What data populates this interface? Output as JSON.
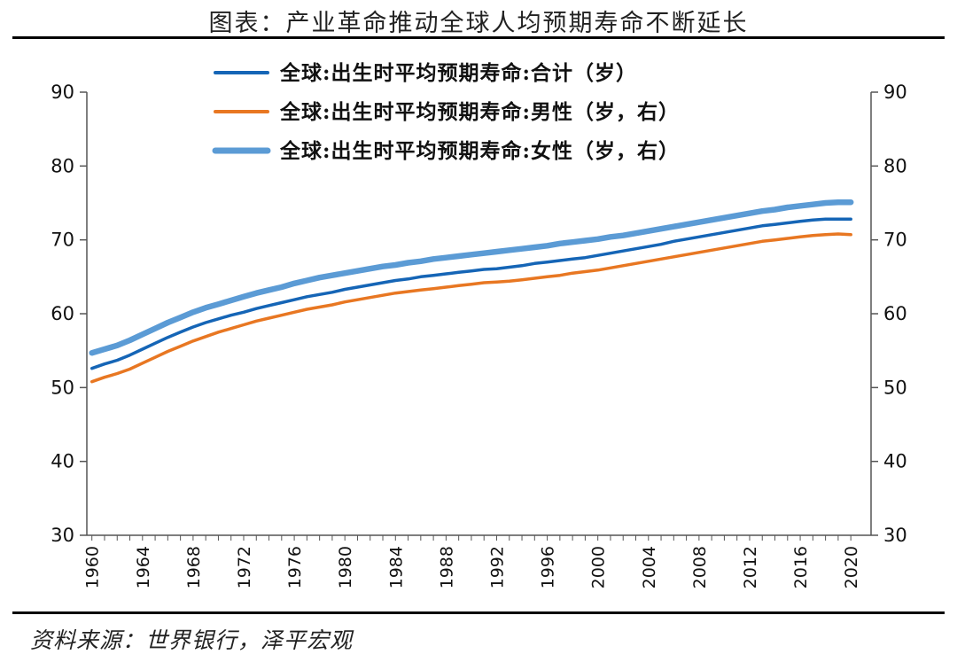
{
  "header": {
    "title": "图表：产业革命推动全球人均预期寿命不断延长"
  },
  "footer": {
    "source": "资料来源：世界银行，泽平宏观"
  },
  "colors": {
    "total": "#1565b6",
    "male": "#e87722",
    "female": "#5b9bd5",
    "axis": "#555555"
  },
  "chart_data": {
    "type": "line",
    "title": "",
    "xlabel": "",
    "ylabel": "",
    "ylim": [
      30,
      90
    ],
    "y_ticks": [
      30,
      40,
      50,
      60,
      70,
      80,
      90
    ],
    "y2lim": [
      30,
      90
    ],
    "y2_ticks": [
      30,
      40,
      50,
      60,
      70,
      80,
      90
    ],
    "x_tick_labels": [
      "1960",
      "1964",
      "1968",
      "1972",
      "1976",
      "1980",
      "1984",
      "1988",
      "1992",
      "1996",
      "2000",
      "2004",
      "2008",
      "2012",
      "2016",
      "2020"
    ],
    "legend_position": "top",
    "x": [
      1960,
      1961,
      1962,
      1963,
      1964,
      1965,
      1966,
      1967,
      1968,
      1969,
      1970,
      1971,
      1972,
      1973,
      1974,
      1975,
      1976,
      1977,
      1978,
      1979,
      1980,
      1981,
      1982,
      1983,
      1984,
      1985,
      1986,
      1987,
      1988,
      1989,
      1990,
      1991,
      1992,
      1993,
      1994,
      1995,
      1996,
      1997,
      1998,
      1999,
      2000,
      2001,
      2002,
      2003,
      2004,
      2005,
      2006,
      2007,
      2008,
      2009,
      2010,
      2011,
      2012,
      2013,
      2014,
      2015,
      2016,
      2017,
      2018,
      2019,
      2020
    ],
    "series": [
      {
        "name": "全球:出生时平均预期寿命:合计（岁）",
        "axis": "left",
        "values": [
          52.6,
          53.2,
          53.7,
          54.4,
          55.2,
          56.0,
          56.8,
          57.5,
          58.2,
          58.8,
          59.3,
          59.8,
          60.2,
          60.7,
          61.1,
          61.5,
          61.9,
          62.3,
          62.6,
          62.9,
          63.3,
          63.6,
          63.9,
          64.2,
          64.5,
          64.7,
          65.0,
          65.2,
          65.4,
          65.6,
          65.8,
          66.0,
          66.1,
          66.3,
          66.5,
          66.8,
          67.0,
          67.2,
          67.4,
          67.6,
          67.9,
          68.2,
          68.5,
          68.8,
          69.1,
          69.4,
          69.8,
          70.1,
          70.4,
          70.7,
          71.0,
          71.3,
          71.6,
          71.9,
          72.1,
          72.3,
          72.5,
          72.7,
          72.8,
          72.8,
          72.8
        ]
      },
      {
        "name": "全球:出生时平均预期寿命:男性（岁，右）",
        "axis": "right",
        "values": [
          50.8,
          51.4,
          51.9,
          52.5,
          53.3,
          54.1,
          54.9,
          55.6,
          56.3,
          56.9,
          57.5,
          58.0,
          58.5,
          59.0,
          59.4,
          59.8,
          60.2,
          60.6,
          60.9,
          61.2,
          61.6,
          61.9,
          62.2,
          62.5,
          62.8,
          63.0,
          63.2,
          63.4,
          63.6,
          63.8,
          64.0,
          64.2,
          64.3,
          64.4,
          64.6,
          64.8,
          65.0,
          65.2,
          65.5,
          65.7,
          65.9,
          66.2,
          66.5,
          66.8,
          67.1,
          67.4,
          67.7,
          68.0,
          68.3,
          68.6,
          68.9,
          69.2,
          69.5,
          69.8,
          70.0,
          70.2,
          70.4,
          70.6,
          70.7,
          70.8,
          70.7
        ]
      },
      {
        "name": "全球:出生时平均预期寿命:女性（岁，右）",
        "axis": "right",
        "values": [
          54.7,
          55.2,
          55.7,
          56.4,
          57.2,
          58.0,
          58.8,
          59.5,
          60.2,
          60.8,
          61.3,
          61.8,
          62.3,
          62.8,
          63.2,
          63.6,
          64.1,
          64.5,
          64.9,
          65.2,
          65.5,
          65.8,
          66.1,
          66.4,
          66.6,
          66.9,
          67.1,
          67.4,
          67.6,
          67.8,
          68.0,
          68.2,
          68.4,
          68.6,
          68.8,
          69.0,
          69.2,
          69.5,
          69.7,
          69.9,
          70.1,
          70.4,
          70.6,
          70.9,
          71.2,
          71.5,
          71.8,
          72.1,
          72.4,
          72.7,
          73.0,
          73.3,
          73.6,
          73.9,
          74.1,
          74.4,
          74.6,
          74.8,
          75.0,
          75.1,
          75.1
        ]
      }
    ]
  }
}
